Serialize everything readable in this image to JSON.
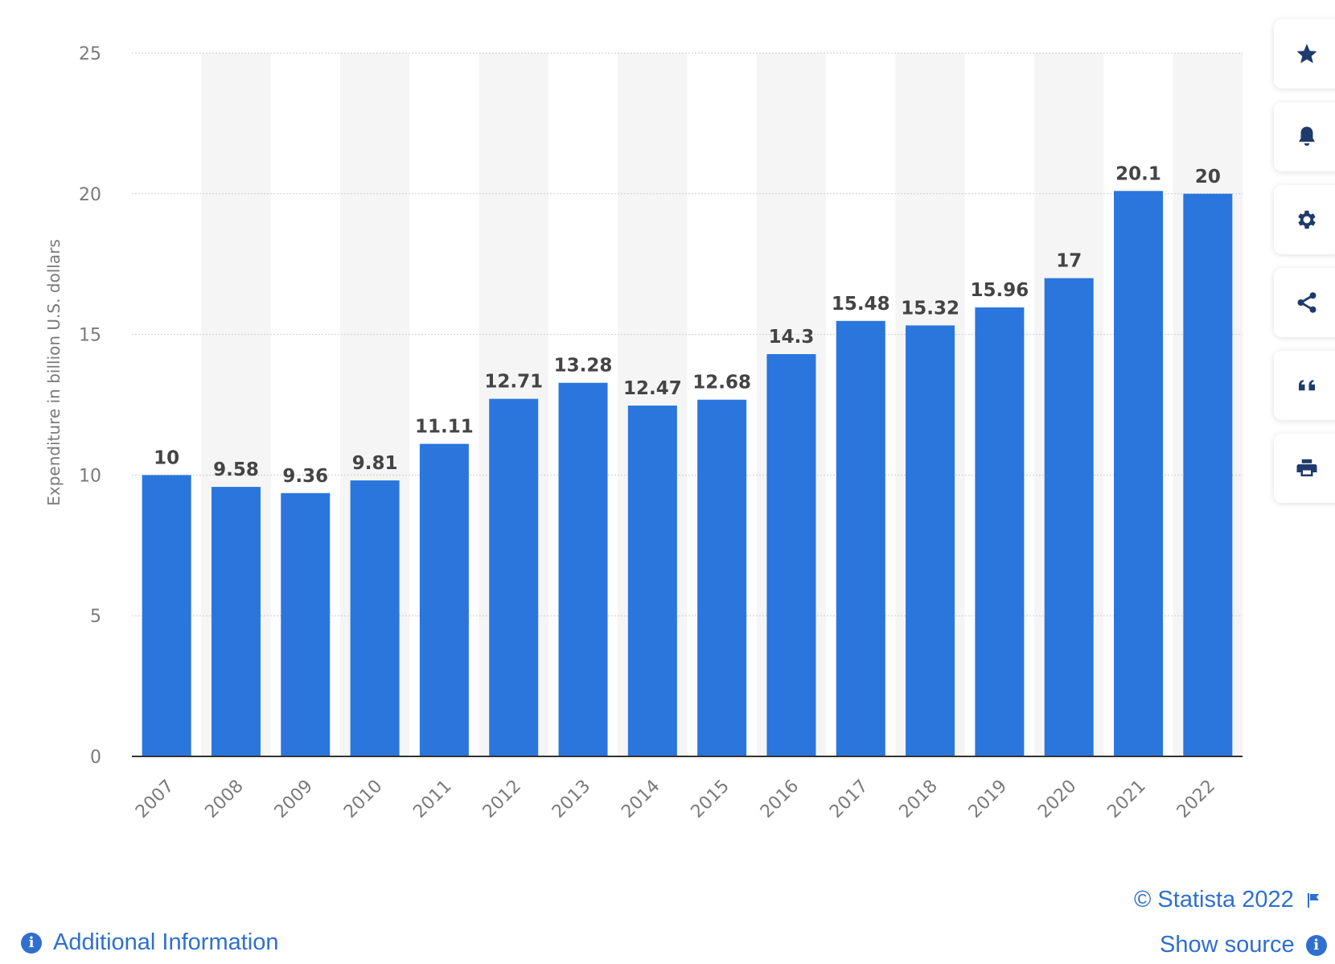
{
  "chart_data": {
    "type": "bar",
    "categories": [
      "2007",
      "2008",
      "2009",
      "2010",
      "2011",
      "2012",
      "2013",
      "2014",
      "2015",
      "2016",
      "2017",
      "2018",
      "2019",
      "2020",
      "2021",
      "2022"
    ],
    "values": [
      10,
      9.58,
      9.36,
      9.81,
      11.11,
      12.71,
      13.28,
      12.47,
      12.68,
      14.3,
      15.48,
      15.32,
      15.96,
      17,
      20.1,
      20
    ],
    "value_labels": [
      "10",
      "9.58",
      "9.36",
      "9.81",
      "11.11",
      "12.71",
      "13.28",
      "12.47",
      "12.68",
      "14.3",
      "15.48",
      "15.32",
      "15.96",
      "17",
      "20.1",
      "20"
    ],
    "ylabel": "Expenditure in billion U.S. dollars",
    "xlabel": "",
    "ylim": [
      0,
      25
    ],
    "yticks": [
      0,
      5,
      10,
      15,
      20,
      25
    ],
    "grid": true,
    "bar_color": "#2a76dd",
    "band_color": "#f5f5f5",
    "gridline_color": "#cccccc"
  },
  "toolbar": {
    "icons": [
      "star-icon",
      "bell-icon",
      "gear-icon",
      "share-icon",
      "quote-icon",
      "print-icon"
    ]
  },
  "footer": {
    "copyright": "© Statista 2022",
    "show_source": "Show source",
    "additional_info": "Additional Information",
    "link_color": "#2f6fcf"
  }
}
